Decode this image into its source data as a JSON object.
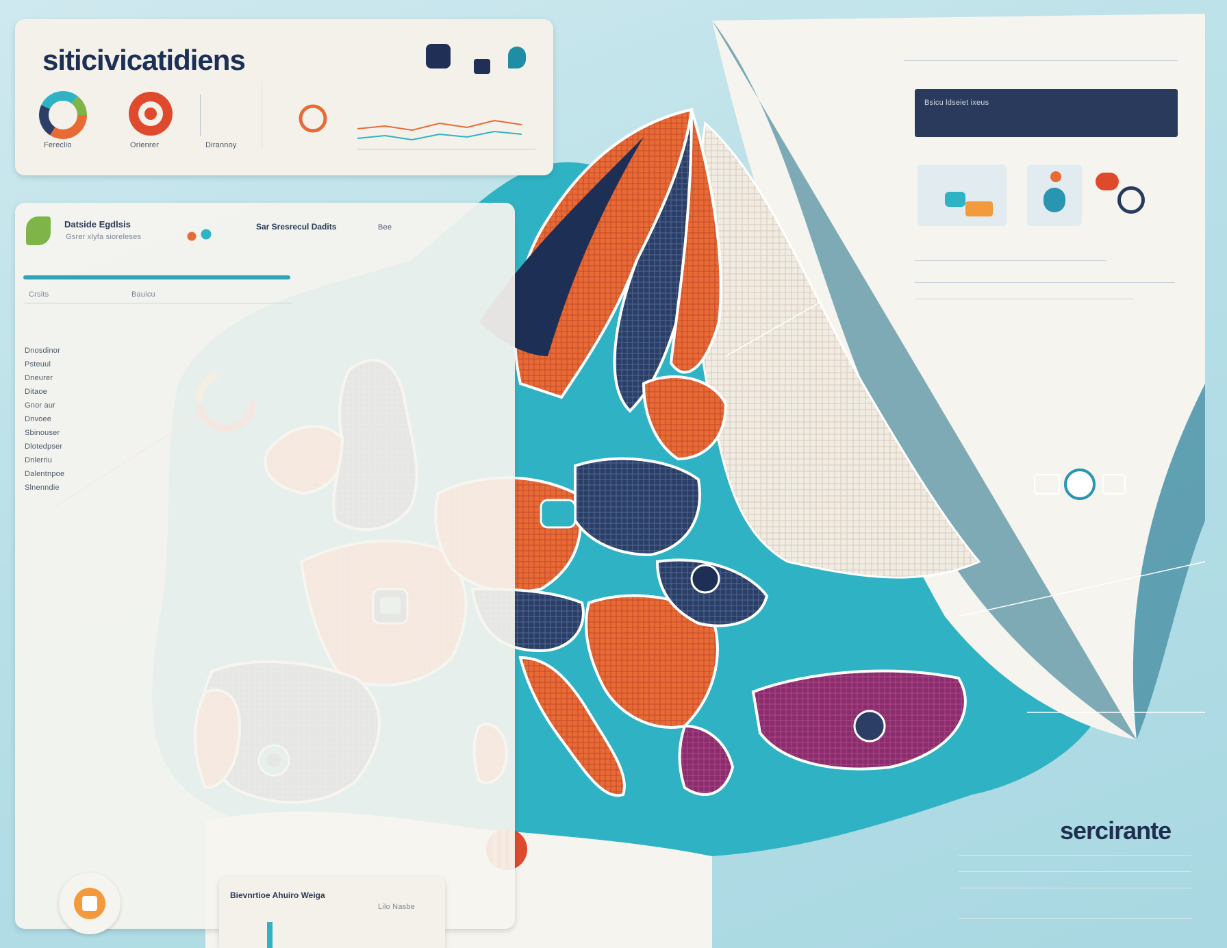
{
  "top_panel": {
    "title": "siticivicatidiens",
    "widgets": [
      {
        "label": "Fereclio"
      },
      {
        "label": "Orienrer"
      },
      {
        "label": "Dirannoy"
      }
    ]
  },
  "left_panel": {
    "title": "Datside Egdlsis",
    "subtitle": "Gsrer xlyfa sioreleses",
    "mid_label": "Sar Sresrecul Dadits",
    "right_label": "Bee",
    "col_a": "Crsits",
    "col_b": "Bauicu",
    "list": [
      "Dnosdinor",
      "Psteuul",
      "Dneurer",
      "Ditaoe",
      "Gnor aur",
      "Dnvoee",
      "Sbinouser",
      "Dlotedpser",
      "Dnlerriu",
      "Dalentnpoe",
      "Slnenndie"
    ]
  },
  "right_panel": {
    "header": "Bsicu ldseiet ixeus"
  },
  "brand": {
    "name": "sercirante"
  },
  "bottom_panel": {
    "title": "Bievnrtioe Ahuiro Weiga",
    "sub": "Lilo Nasbe"
  },
  "colors": {
    "sea": "#2fb3c4",
    "land_orange": "#e86a35",
    "land_navy": "#2c3e66",
    "land_purple": "#8a2d6d",
    "land_paper": "#f3efe6",
    "accent_red": "#e04a2c"
  }
}
